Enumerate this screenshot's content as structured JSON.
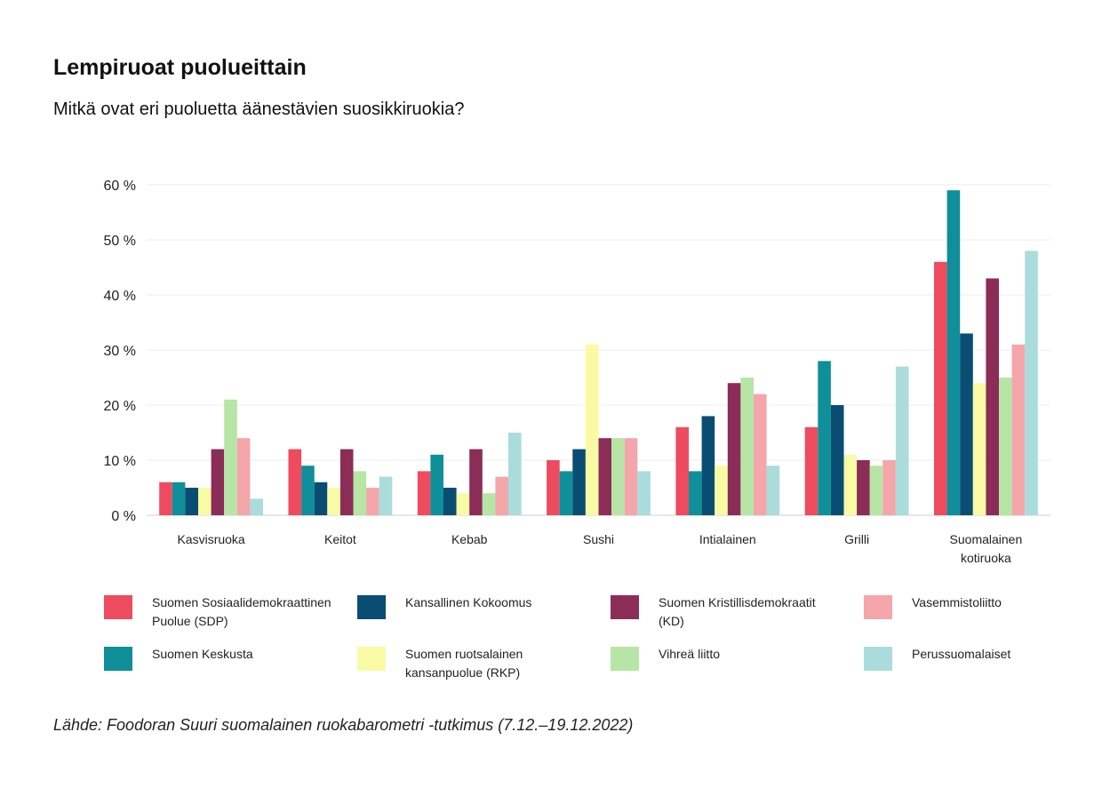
{
  "chart_data": {
    "type": "bar",
    "title": "Lempiruoat puolueittain",
    "subtitle": "Mitkä ovat eri puoluetta äänestävien suosikkiruokia?",
    "source": "Lähde: Foodoran Suuri suomalainen ruokabarometri -tutkimus (7.12.–19.12.2022)",
    "categories": [
      [
        "Kasvisruoka"
      ],
      [
        "Keitot"
      ],
      [
        "Kebab"
      ],
      [
        "Sushi"
      ],
      [
        "Intialainen"
      ],
      [
        "Grilli"
      ],
      [
        "Suomalainen",
        "kotiruoka"
      ]
    ],
    "ylim": [
      0,
      60
    ],
    "yticks": [
      0,
      10,
      20,
      30,
      40,
      50,
      60
    ],
    "ytick_labels": [
      "0 %",
      "10 %",
      "20 %",
      "30 %",
      "40 %",
      "50 %",
      "60 %"
    ],
    "grid": true,
    "legend_position": "bottom",
    "series": [
      {
        "name": "Suomen Sosiaalidemokraattinen Puolue (SDP)",
        "name_lines": [
          "Suomen Sosiaalidemokraattinen",
          "Puolue (SDP)"
        ],
        "color": "#EE4B5F",
        "values": [
          6,
          12,
          8,
          10,
          16,
          16,
          46
        ]
      },
      {
        "name": "Suomen Keskusta",
        "name_lines": [
          "Suomen Keskusta"
        ],
        "color": "#0E8F99",
        "values": [
          6,
          9,
          11,
          8,
          8,
          28,
          59
        ]
      },
      {
        "name": "Kansallinen Kokoomus",
        "name_lines": [
          "Kansallinen Kokoomus"
        ],
        "color": "#0A4D72",
        "values": [
          5,
          6,
          5,
          12,
          18,
          20,
          33
        ]
      },
      {
        "name": "Suomen ruotsalainen kansanpuolue (RKP)",
        "name_lines": [
          "Suomen ruotsalainen",
          "kansanpuolue (RKP)"
        ],
        "color": "#F8FBA4",
        "values": [
          5,
          5,
          4,
          31,
          9,
          11,
          24
        ]
      },
      {
        "name": "Suomen Kristillisdemokraatit (KD)",
        "name_lines": [
          "Suomen Kristillisdemokraatit",
          "(KD)"
        ],
        "color": "#8B2D57",
        "values": [
          12,
          12,
          12,
          14,
          24,
          10,
          43
        ]
      },
      {
        "name": "Vihreä liitto",
        "name_lines": [
          "Vihreä liitto"
        ],
        "color": "#B7E5A5",
        "values": [
          21,
          8,
          4,
          14,
          25,
          9,
          25
        ]
      },
      {
        "name": "Vasemmistoliitto",
        "name_lines": [
          "Vasemmistoliitto"
        ],
        "color": "#F4A6AB",
        "values": [
          14,
          5,
          7,
          14,
          22,
          10,
          31
        ]
      },
      {
        "name": "Perussuomalaiset",
        "name_lines": [
          "Perussuomalaiset"
        ],
        "color": "#AADCDC",
        "values": [
          3,
          7,
          15,
          8,
          9,
          27,
          48
        ]
      }
    ],
    "legend_order": [
      0,
      2,
      4,
      6,
      1,
      3,
      5,
      7
    ]
  }
}
